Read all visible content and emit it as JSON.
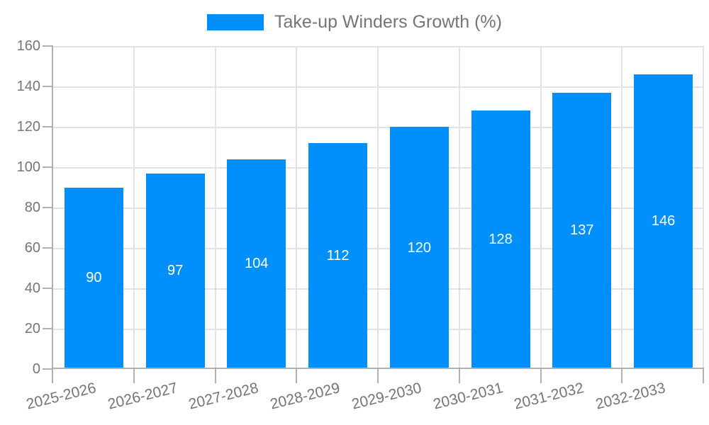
{
  "legend": {
    "label": "Take-up Winders Growth (%)"
  },
  "chart_data": {
    "type": "bar",
    "title": "Take-up Winders Growth (%)",
    "categories": [
      "2025-2026",
      "2026-2027",
      "2027-2028",
      "2028-2029",
      "2029-2030",
      "2030-2031",
      "2031-2032",
      "2032-2033"
    ],
    "series": [
      {
        "name": "Take-up Winders Growth (%)",
        "values": [
          90,
          97,
          104,
          112,
          120,
          128,
          137,
          146
        ]
      }
    ],
    "xlabel": "",
    "ylabel": "",
    "ylim": [
      0,
      160
    ],
    "yticks": [
      0,
      20,
      40,
      60,
      80,
      100,
      120,
      140,
      160
    ],
    "grid": true,
    "legend_position": "top",
    "x_label_rotation_deg": -14,
    "colors": {
      "bar": "#008FFB",
      "bar_value_label": "#FFFFFF",
      "axis_text": "#757575",
      "grid_line": "#E2E2E2",
      "axis_line": "#B1B1B1"
    }
  }
}
